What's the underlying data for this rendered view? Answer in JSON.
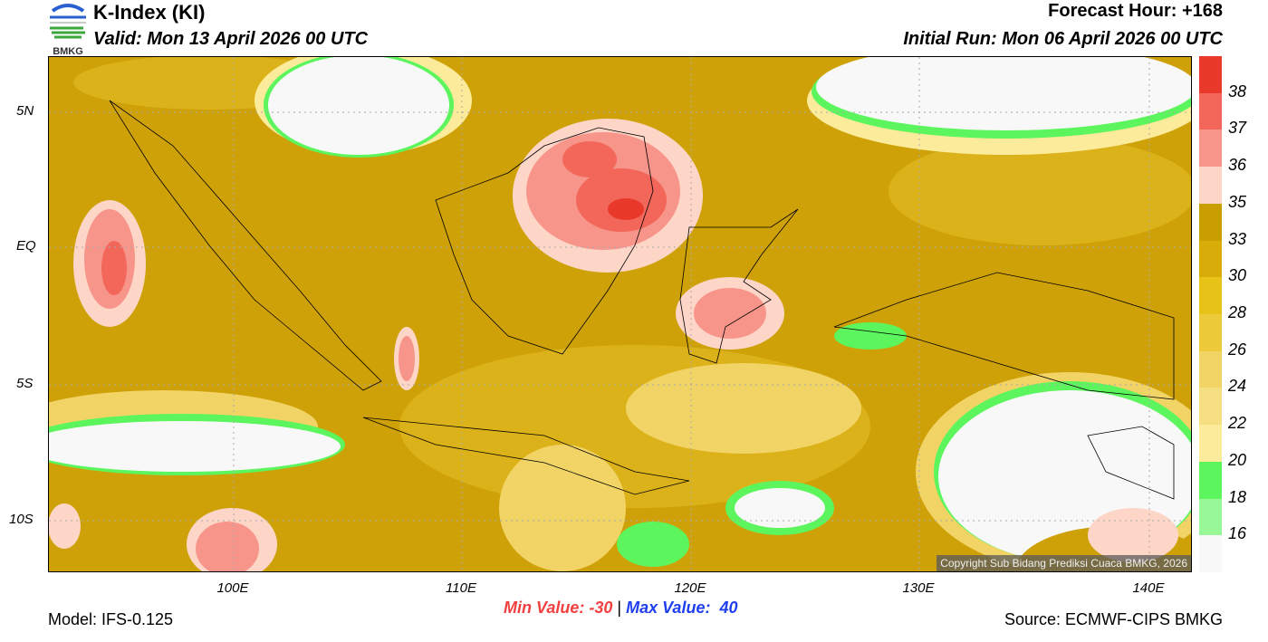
{
  "header": {
    "logo_text": "BMKG",
    "title": "K-Index (KI)",
    "valid": "Valid: Mon 13 April 2026 00 UTC",
    "forecast_hour": "Forecast Hour: +168",
    "initial_run": "Initial Run: Mon 06 April 2026 00 UTC"
  },
  "map": {
    "lat_labels": [
      "5N",
      "EQ",
      "5S",
      "10S"
    ],
    "lon_labels": [
      "100E",
      "110E",
      "120E",
      "130E",
      "140E"
    ],
    "copyright": "Copyright Sub Bidang Prediksi Cuaca BMKG, 2026"
  },
  "colorbar": {
    "colors": [
      "#e8392a",
      "#f2675a",
      "#f8958a",
      "#fdd6c8",
      "#c89e00",
      "#d8ad0a",
      "#e6c316",
      "#ecca3a",
      "#f2d466",
      "#f6df82",
      "#fbeb9a",
      "#5df55d",
      "#98f898",
      "#f8f8f8"
    ],
    "labels": [
      "38",
      "37",
      "36",
      "35",
      "33",
      "30",
      "28",
      "26",
      "24",
      "22",
      "20",
      "18",
      "16"
    ]
  },
  "footer": {
    "model": "Model: IFS-0.125",
    "min_value": "Min Value: -30",
    "separator": "|",
    "max_value": "Max Value:  40",
    "source": "Source: ECMWF-CIPS BMKG"
  }
}
